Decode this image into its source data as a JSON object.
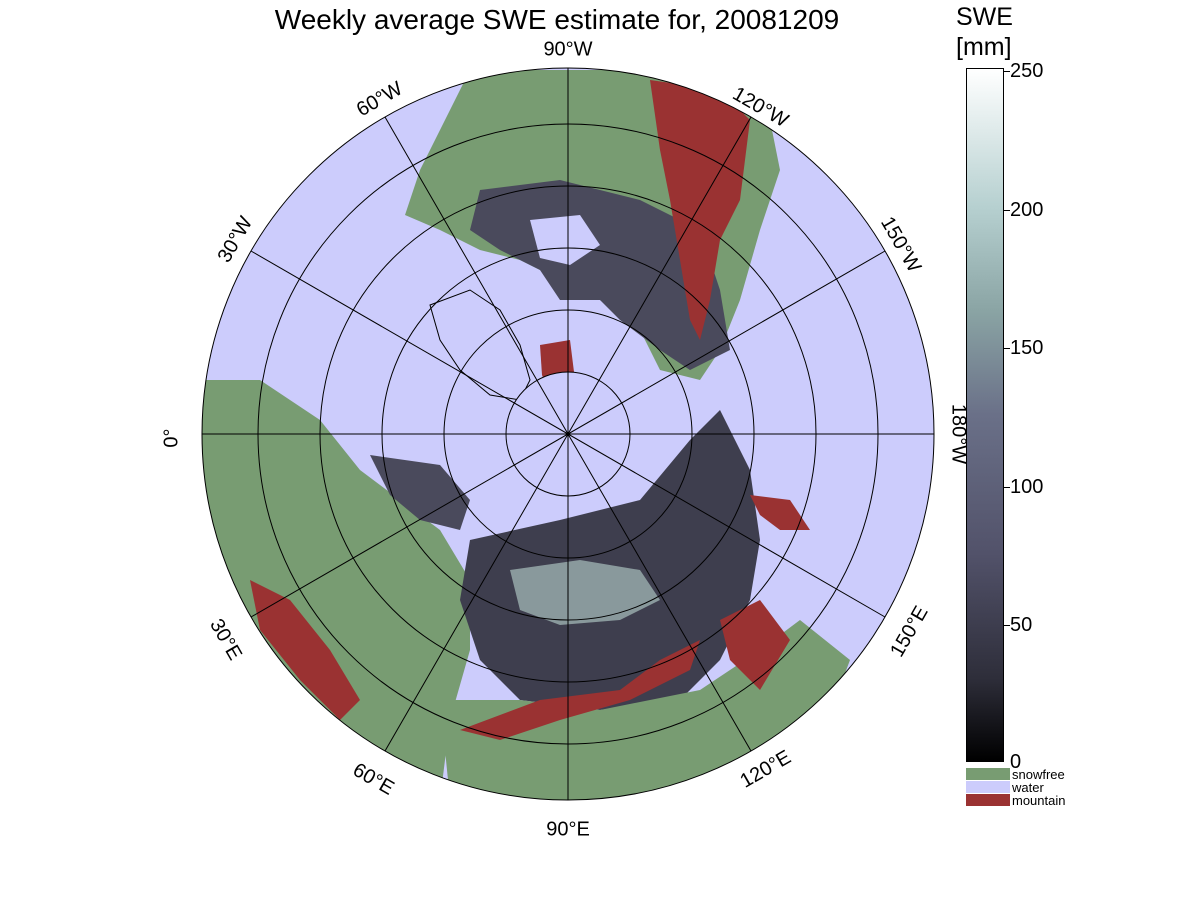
{
  "title": "Weekly average SWE estimate for, 20081209",
  "colorbar": {
    "title_line1": "SWE",
    "title_line2": "[mm]",
    "ticks": [
      "250",
      "200",
      "150",
      "100",
      "50",
      "0"
    ]
  },
  "legend": [
    {
      "label": "snowfree",
      "color": "#789c72"
    },
    {
      "label": "water",
      "color": "#ccccfc"
    },
    {
      "label": "mountain",
      "color": "#9a3232"
    }
  ],
  "longitude_labels": [
    "90°W",
    "120°W",
    "150°W",
    "180°W",
    "150°E",
    "120°E",
    "90°E",
    "60°E",
    "30°E",
    "0°",
    "30°W",
    "60°W"
  ],
  "colors": {
    "ocean": "#ccccfc",
    "snowfree": "#789c72",
    "mountain": "#9a3232",
    "swe_low": "#1a1a22",
    "swe_mid": "#5e6072",
    "swe_high": "#a6bcbc"
  }
}
